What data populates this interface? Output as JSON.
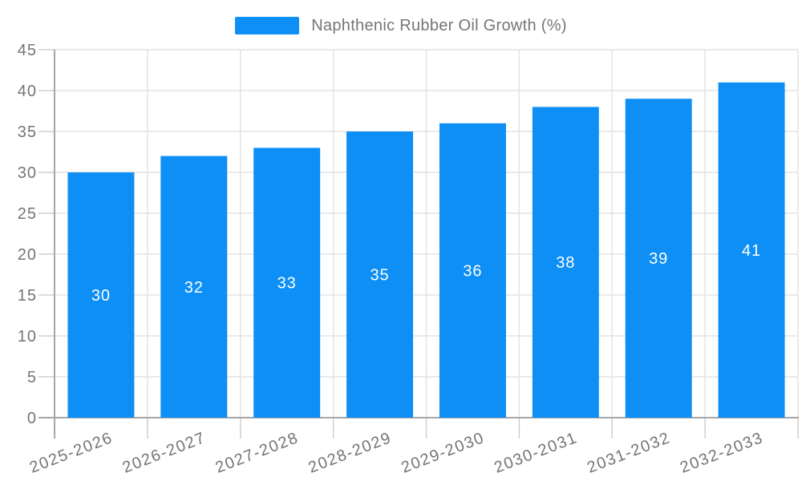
{
  "chart_data": {
    "type": "bar",
    "title": "",
    "legend": {
      "items": [
        "Naphthenic Rubber Oil Growth (%)"
      ],
      "position": "top-center"
    },
    "categories": [
      "2025-2026",
      "2026-2027",
      "2027-2028",
      "2028-2029",
      "2029-2030",
      "2030-2031",
      "2031-2032",
      "2032-2033"
    ],
    "series": [
      {
        "name": "Naphthenic Rubber Oil Growth (%)",
        "values": [
          30,
          32,
          33,
          35,
          36,
          38,
          39,
          41
        ]
      }
    ],
    "xlabel": "",
    "ylabel": "",
    "ylim": [
      0,
      45
    ],
    "yticks": [
      0,
      5,
      10,
      15,
      20,
      25,
      30,
      35,
      40,
      45
    ],
    "grid": true,
    "bar_label_position": "inside-center",
    "x_tick_rotation_deg": -21,
    "colors": {
      "bar": "#0E8FF5",
      "bar_label": "#FFFFFF",
      "axis_line": "#A6A6A6",
      "grid_line": "#E3E3E3",
      "tick_mark": "#CFCFCF",
      "tick_label": "#757575",
      "legend_text": "#757575",
      "background": "#FFFFFF"
    }
  }
}
